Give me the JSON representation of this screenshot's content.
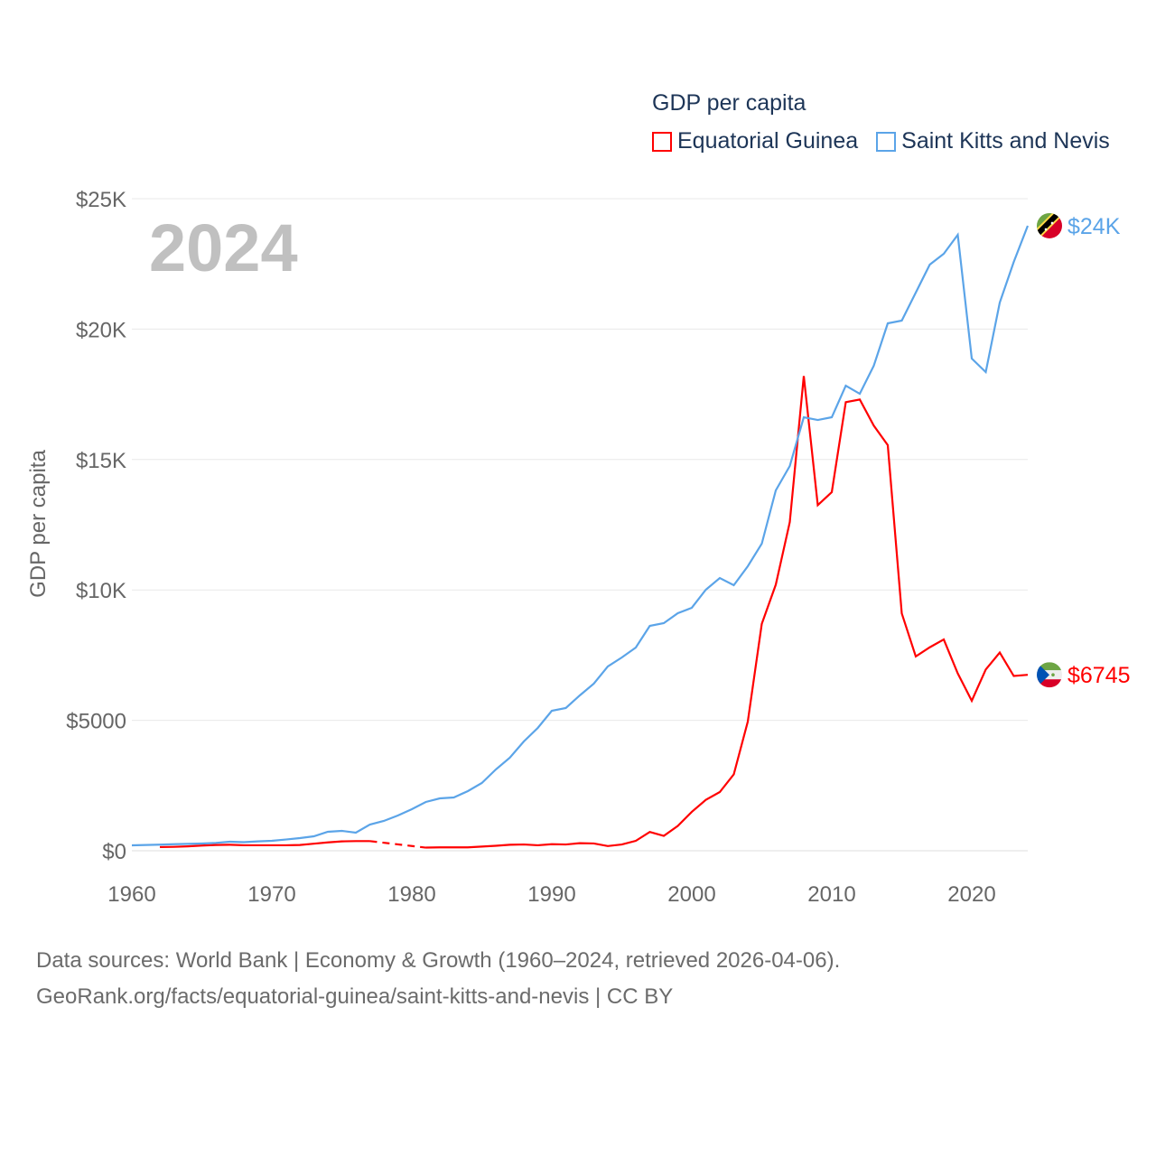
{
  "chart_data": {
    "type": "line",
    "title": "GDP per capita",
    "ylabel": "GDP per capita",
    "xlabel": "",
    "year_label": "2024",
    "xlim": [
      1960,
      2024
    ],
    "ylim": [
      0,
      25000
    ],
    "x_ticks": [
      1960,
      1970,
      1980,
      1990,
      2000,
      2010,
      2020
    ],
    "x_tick_labels": [
      "1960",
      "1970",
      "1980",
      "1990",
      "2000",
      "2010",
      "2020"
    ],
    "y_ticks": [
      0,
      5000,
      10000,
      15000,
      20000,
      25000
    ],
    "y_tick_labels": [
      "$0",
      "$5000",
      "$10K",
      "$15K",
      "$20K",
      "$25K"
    ],
    "grid": true,
    "legend_placement": "top-right",
    "series": [
      {
        "name": "Equatorial Guinea",
        "color": "#ff0000",
        "end_label": "$6745",
        "flag": "equatorial-guinea-flag",
        "x_start": 1962,
        "values": [
          140,
          150,
          170,
          200,
          220,
          230,
          210,
          210,
          210,
          210,
          220,
          270,
          320,
          360,
          370,
          370,
          null,
          null,
          null,
          120,
          130,
          130,
          130,
          160,
          190,
          230,
          240,
          210,
          250,
          240,
          290,
          280,
          180,
          240,
          380,
          720,
          570,
          950,
          1490,
          1950,
          2250,
          2930,
          4950,
          8700,
          10200,
          12600,
          18200,
          13250,
          13750,
          17200,
          17300,
          16300,
          15550,
          9100,
          7450,
          7800,
          8100,
          6800,
          5750,
          6950,
          7600,
          6700,
          6745
        ]
      },
      {
        "name": "Saint Kitts and Nevis",
        "color": "#5ba4e8",
        "end_label": "$24K",
        "flag": "saint-kitts-and-nevis-flag",
        "x_start": 1960,
        "values": [
          208,
          220,
          235,
          250,
          265,
          277,
          300,
          346,
          330,
          360,
          381,
          430,
          485,
          554,
          727,
          762,
          693,
          1004,
          1143,
          1350,
          1593,
          1870,
          2008,
          2043,
          2285,
          2597,
          3116,
          3567,
          4190,
          4709,
          5367,
          5471,
          5956,
          6406,
          7064,
          7410,
          7791,
          8622,
          8726,
          9107,
          9315,
          10007,
          10457,
          10180,
          10907,
          11773,
          13816,
          14751,
          16620,
          16516,
          16620,
          17832,
          17520,
          18594,
          20222,
          20326,
          21399,
          22473,
          22888,
          23615,
          18871,
          18352,
          21018,
          22577,
          23962
        ]
      }
    ]
  },
  "footer": {
    "line1": "Data sources: World Bank | Economy & Growth (1960–2024, retrieved 2026-04-06).",
    "line2": "GeoRank.org/facts/equatorial-guinea/saint-kitts-and-nevis | CC BY"
  }
}
